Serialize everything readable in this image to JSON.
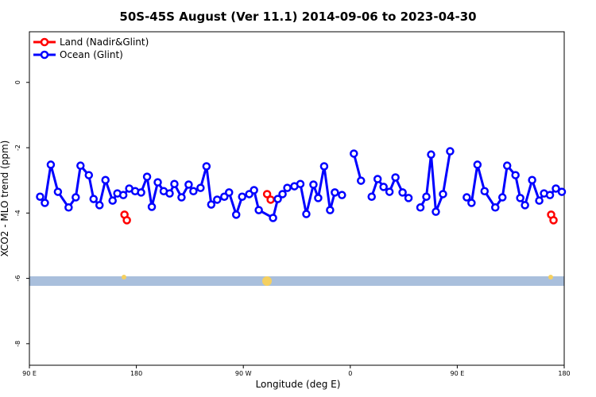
{
  "chart_data": {
    "type": "line",
    "title": "50S-45S August (Ver 11.1)   2014-09-06 to 2023-04-30",
    "x_label": "Longitude (deg E)",
    "y_label": "XCO2 - MLO trend (ppm)",
    "xlim": [
      90,
      540
    ],
    "ylim": [
      -8.66,
      1.55
    ],
    "xticks": [
      {
        "value": 90,
        "label": "90 E"
      },
      180,
      {
        "value": 270,
        "label": "90 W"
      },
      {
        "value": 360,
        "label": "0"
      },
      {
        "value": 450,
        "label": "90 E"
      },
      {
        "value": 540,
        "label": "180"
      }
    ],
    "yticks": [
      0,
      -2,
      -4,
      -6,
      -8
    ],
    "legend": "upper left",
    "series": [
      {
        "name": "Land (Nadir&Glint)",
        "color": "#ff0000",
        "x": [
          170,
          172,
          null,
          290,
          293,
          null,
          529,
          531
        ],
        "values": [
          -4.05,
          -4.22,
          null,
          -3.42,
          -3.59,
          null,
          -4.05,
          -4.22
        ]
      },
      {
        "name": "Ocean (Glint)",
        "color": "#0000ff",
        "x": [
          99,
          103,
          108,
          114,
          123,
          129,
          133,
          140,
          144,
          149,
          154,
          160,
          164,
          169,
          174,
          179,
          184,
          189,
          193,
          198,
          203,
          208,
          212,
          218,
          224,
          228,
          234,
          239,
          243,
          248,
          254,
          258,
          264,
          269,
          275,
          279,
          283,
          295,
          299,
          303,
          307,
          313,
          318,
          323,
          329,
          333,
          338,
          343,
          347,
          353,
          null,
          363,
          369,
          null,
          378,
          383,
          388,
          393,
          398,
          404,
          409,
          null,
          419,
          424,
          428,
          432,
          438,
          444,
          null,
          458,
          462,
          467,
          473,
          482,
          488,
          492,
          499,
          503,
          507,
          513,
          519,
          523,
          528,
          533,
          538
        ],
        "values": [
          -3.5,
          -3.69,
          -2.52,
          -3.35,
          -3.83,
          -3.52,
          -2.55,
          -2.84,
          -3.57,
          -3.76,
          -2.99,
          -3.62,
          -3.4,
          -3.45,
          -3.25,
          -3.33,
          -3.37,
          -2.89,
          -3.81,
          -3.06,
          -3.33,
          -3.4,
          -3.11,
          -3.52,
          -3.13,
          -3.33,
          -3.23,
          -2.57,
          -3.74,
          -3.59,
          -3.5,
          -3.37,
          -4.05,
          -3.5,
          -3.42,
          -3.3,
          -3.91,
          -4.15,
          -3.57,
          -3.42,
          -3.23,
          -3.18,
          -3.11,
          -4.03,
          -3.13,
          -3.54,
          -2.57,
          -3.91,
          -3.37,
          -3.45,
          null,
          -2.18,
          -3.01,
          null,
          -3.5,
          -2.96,
          -3.2,
          -3.35,
          -2.91,
          -3.37,
          -3.54,
          null,
          -3.83,
          -3.5,
          -2.21,
          -3.96,
          -3.42,
          -2.11,
          null,
          -3.52,
          -3.69,
          -2.52,
          -3.33,
          -3.83,
          -3.52,
          -2.55,
          -2.84,
          -3.54,
          -3.76,
          -2.99,
          -3.62,
          -3.4,
          -3.45,
          -3.25,
          -3.35
        ]
      }
    ]
  }
}
